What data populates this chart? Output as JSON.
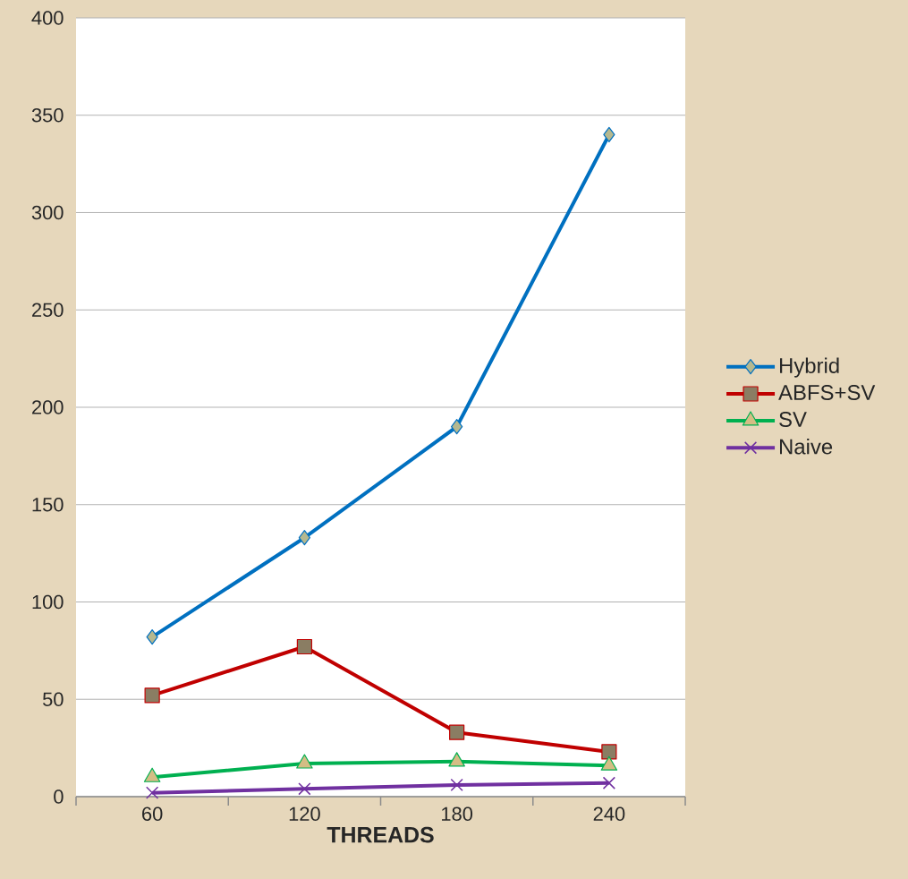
{
  "chart_data": {
    "type": "line",
    "xlabel": "THREADS",
    "categories": [
      "60",
      "120",
      "180",
      "240"
    ],
    "series": [
      {
        "name": "Hybrid",
        "color": "#0070c0",
        "marker": "diamond",
        "values": [
          82,
          133,
          190,
          340
        ]
      },
      {
        "name": "ABFS+SV",
        "color": "#c00000",
        "marker": "square",
        "values": [
          52,
          77,
          33,
          23
        ]
      },
      {
        "name": "SV",
        "color": "#00b050",
        "marker": "triangle",
        "values": [
          10,
          17,
          18,
          16
        ]
      },
      {
        "name": "Naive",
        "color": "#7030a0",
        "marker": "cross",
        "values": [
          2,
          4,
          6,
          7
        ]
      }
    ],
    "ylim": [
      0,
      400
    ],
    "yticks": [
      0,
      50,
      100,
      150,
      200,
      250,
      300,
      350,
      400
    ],
    "grid": "y",
    "legend": "right",
    "line_style": "solid"
  }
}
